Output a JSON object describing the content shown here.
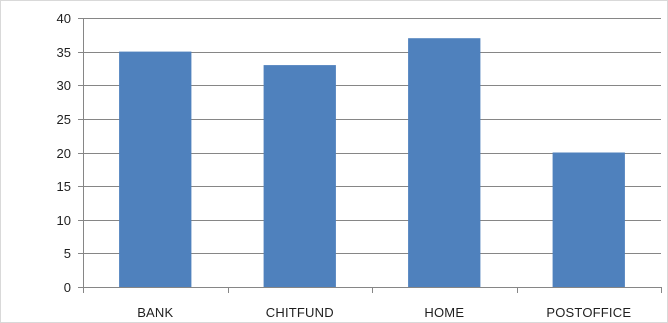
{
  "chart_data": {
    "type": "bar",
    "categories": [
      "BANK",
      "CHITFUND",
      "HOME",
      "POSTOFFICE"
    ],
    "values": [
      35,
      33,
      37,
      20
    ],
    "ylim": [
      0,
      40
    ],
    "yticks": [
      0,
      5,
      10,
      15,
      20,
      25,
      30,
      35,
      40
    ],
    "grid": true,
    "bar_color": "#4f81bd",
    "gridline_color": "#868686",
    "axis_color": "#868686"
  }
}
